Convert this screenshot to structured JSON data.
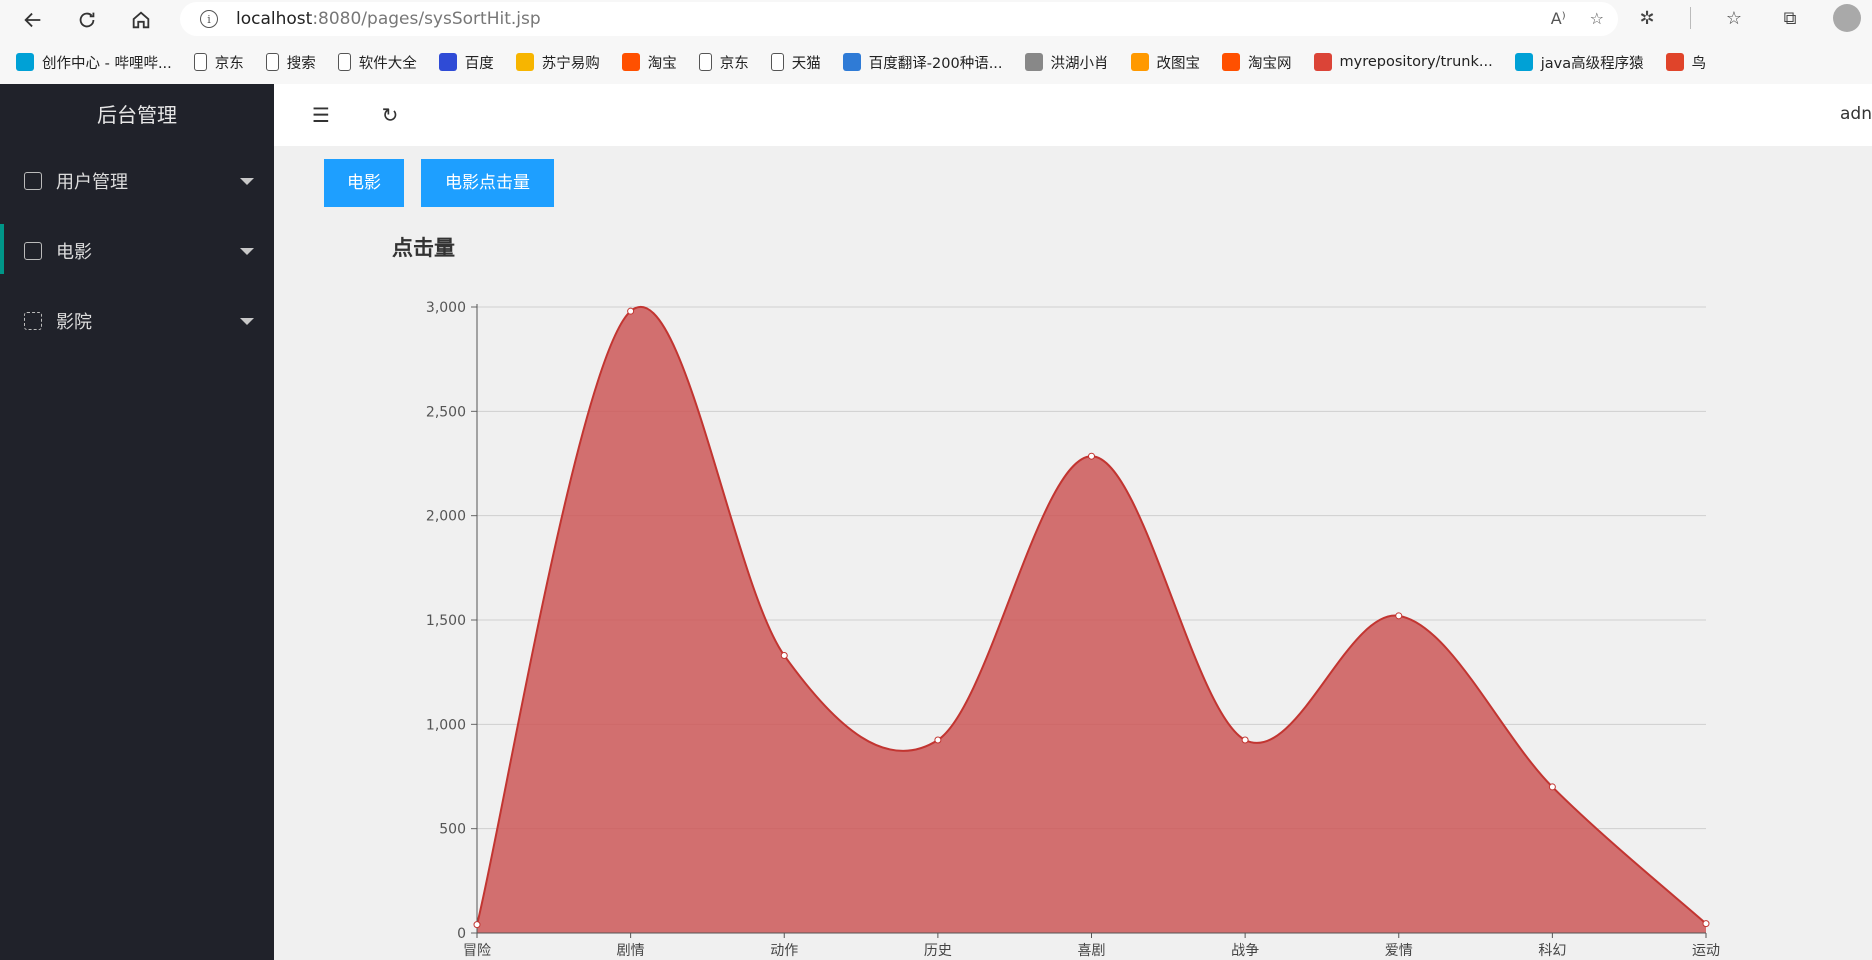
{
  "browser": {
    "url_host": "localhost",
    "url_rest": ":8080/pages/sysSortHit.jsp",
    "bookmarks": [
      {
        "label": "创作中心 - 哔哩哔...",
        "color": "#00a1d6"
      },
      {
        "label": "京东",
        "color": "#ffffff"
      },
      {
        "label": "搜索",
        "color": "#ffffff"
      },
      {
        "label": "软件大全",
        "color": "#ffffff"
      },
      {
        "label": "百度",
        "color": "#2f4bd6"
      },
      {
        "label": "苏宁易购",
        "color": "#f7b500"
      },
      {
        "label": "淘宝",
        "color": "#ff5000"
      },
      {
        "label": "京东",
        "color": "#ffffff"
      },
      {
        "label": "天猫",
        "color": "#ffffff"
      },
      {
        "label": "百度翻译-200种语...",
        "color": "#2f7bd6"
      },
      {
        "label": "洪湖小肖",
        "color": "#888888"
      },
      {
        "label": "改图宝",
        "color": "#ff9900"
      },
      {
        "label": "淘宝网",
        "color": "#ff5000"
      },
      {
        "label": "myrepository/trunk...",
        "color": "#db4437"
      },
      {
        "label": "java高级程序猿",
        "color": "#00a1d6"
      },
      {
        "label": "鸟",
        "color": "#e0442a"
      }
    ]
  },
  "sidebar": {
    "title": "后台管理",
    "items": [
      {
        "label": "用户管理",
        "icon": "cube-icon"
      },
      {
        "label": "电影",
        "icon": "film-icon"
      },
      {
        "label": "影院",
        "icon": "apps-icon"
      }
    ]
  },
  "topbar": {
    "user": "adn"
  },
  "tabs": [
    {
      "label": "电影"
    },
    {
      "label": "电影点击量"
    }
  ],
  "chart_data": {
    "type": "area",
    "title": "点击量",
    "categories": [
      "冒险",
      "剧情",
      "动作",
      "历史",
      "喜剧",
      "战争",
      "爱情",
      "科幻",
      "运动"
    ],
    "values": [
      40,
      2980,
      1330,
      925,
      2285,
      925,
      1520,
      700,
      45
    ],
    "ylim": [
      0,
      3000
    ],
    "yticks": [
      0,
      500,
      1000,
      1500,
      2000,
      2500,
      3000
    ],
    "ytick_labels": [
      "0",
      "500",
      "1,000",
      "1,500",
      "2,000",
      "2,500",
      "3,000"
    ],
    "smooth": true,
    "grid": true,
    "fill_color": "#cd5c5c",
    "line_color": "#c23531"
  }
}
